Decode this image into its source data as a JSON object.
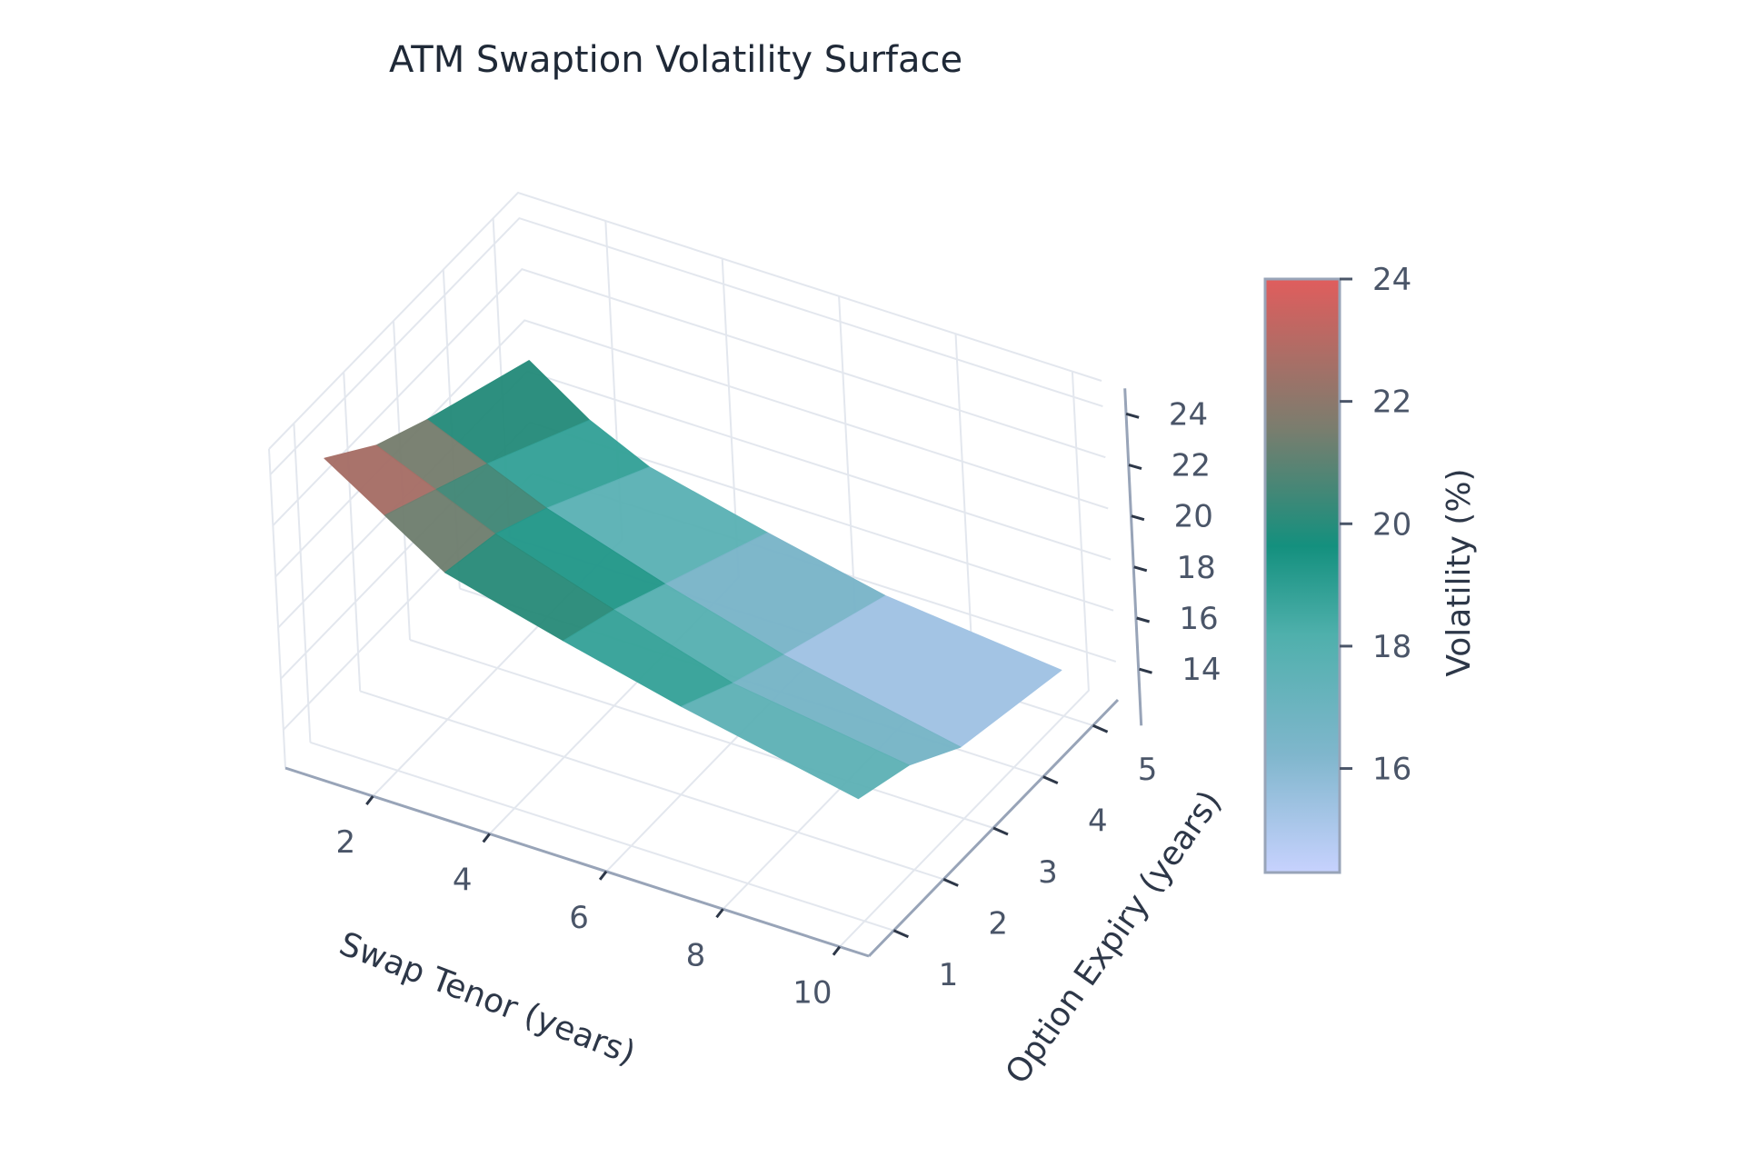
{
  "chart_data": {
    "type": "surface",
    "title": "ATM Swaption Volatility Surface",
    "x_axis": {
      "label": "Swap Tenor (years)",
      "values": [
        1,
        2,
        3,
        5,
        7,
        10
      ],
      "ticks": [
        2,
        4,
        6,
        8,
        10
      ],
      "range": [
        0.5,
        10.5
      ]
    },
    "y_axis": {
      "label": "Option Expiry (years)",
      "values": [
        1,
        2,
        3,
        5
      ],
      "ticks": [
        1,
        2,
        3,
        4,
        5
      ],
      "range": [
        0.5,
        5.5
      ]
    },
    "z_axis": {
      "ticks": [
        14,
        16,
        18,
        20,
        22,
        24
      ],
      "range": [
        12.5,
        25
      ]
    },
    "colorbar": {
      "label": "Volatility (%)",
      "ticks": [
        16,
        18,
        20,
        22,
        24
      ],
      "range": [
        14.3,
        24.0
      ]
    },
    "colorscale": [
      "#c7d2fe",
      "#7fb6cc",
      "#4fb0ac",
      "#14907e",
      "#7b7d6e",
      "#e05d5d"
    ],
    "z": [
      [
        24.0,
        22.5,
        21.0,
        19.8,
        18.7,
        17.3
      ],
      [
        22.5,
        21.5,
        20.5,
        19.0,
        17.6,
        16.6
      ],
      [
        21.5,
        20.5,
        19.5,
        18.0,
        16.7,
        15.3
      ],
      [
        19.8,
        18.2,
        17.1,
        16.0,
        15.0,
        14.3
      ]
    ],
    "grid": true
  }
}
